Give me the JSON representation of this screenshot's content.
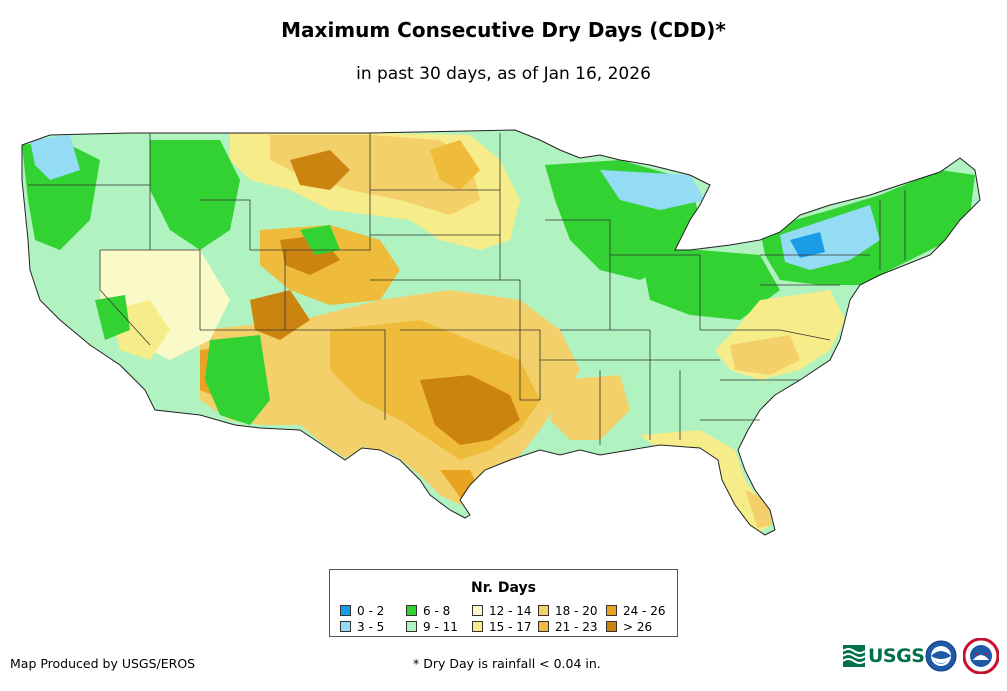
{
  "title": "Maximum Consecutive Dry Days (CDD)*",
  "subtitle": "in past 30 days, as of Jan 16, 2026",
  "legend": {
    "title": "Nr. Days",
    "items": [
      {
        "label": "0 - 2",
        "color": "#1a9ce6"
      },
      {
        "label": "3 - 5",
        "color": "#94dcf4"
      },
      {
        "label": "6 - 8",
        "color": "#33d233"
      },
      {
        "label": "9 - 11",
        "color": "#b0f2c0"
      },
      {
        "label": "12 - 14",
        "color": "#fafac8"
      },
      {
        "label": "15 - 17",
        "color": "#f6ec8a"
      },
      {
        "label": "18 - 20",
        "color": "#f4d06a"
      },
      {
        "label": "21 - 23",
        "color": "#eebc3a"
      },
      {
        "label": "24 - 26",
        "color": "#e8a420"
      },
      {
        "label": "> 26",
        "color": "#cc8410"
      }
    ]
  },
  "credit": "Map Produced by USGS/EROS",
  "footnote": "* Dry Day is rainfall < 0.04 in.",
  "logos": {
    "usgs": "USGS"
  },
  "icons": {
    "usgs": "usgs-logo-icon",
    "noaa": "noaa-logo-icon",
    "nws": "nws-logo-icon"
  }
}
